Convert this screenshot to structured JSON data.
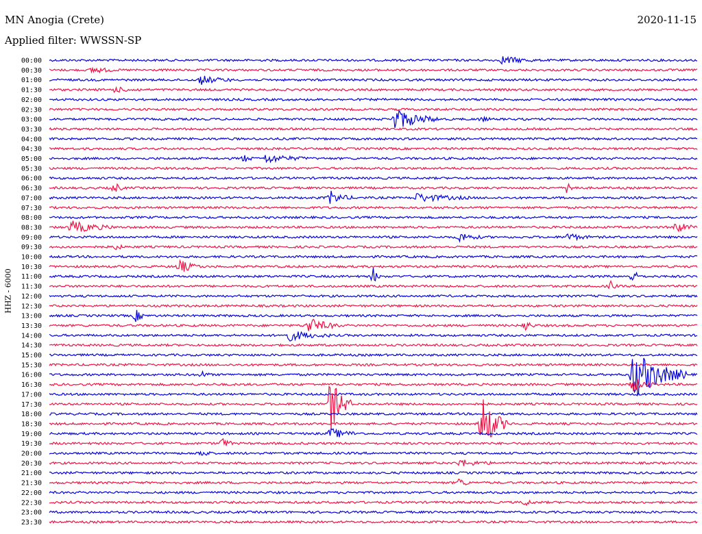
{
  "header": {
    "station": "MN Anogia (Crete)",
    "date": "2020-11-15",
    "filter": "Applied filter: WWSSN-SP",
    "channel": "HHZ - 6000"
  },
  "colors": {
    "even_row": "#0000dd",
    "odd_row": "#ee1144"
  },
  "chart_data": {
    "type": "line",
    "title": "",
    "ylabel": "HHZ - 6000",
    "row_labels": [
      "00:00",
      "00:30",
      "01:00",
      "01:30",
      "02:00",
      "02:30",
      "03:00",
      "03:30",
      "04:00",
      "04:30",
      "05:00",
      "05:30",
      "06:00",
      "06:30",
      "07:00",
      "07:30",
      "08:00",
      "08:30",
      "09:00",
      "09:30",
      "10:00",
      "10:30",
      "11:00",
      "11:30",
      "12:00",
      "12:30",
      "13:00",
      "13:30",
      "14:00",
      "14:30",
      "15:00",
      "15:30",
      "16:00",
      "16:30",
      "17:00",
      "17:30",
      "18:00",
      "18:30",
      "19:00",
      "19:30",
      "20:00",
      "20:30",
      "21:00",
      "21:30",
      "22:00",
      "22:30",
      "23:00",
      "23:30"
    ],
    "row_minutes": 30,
    "events": [
      {
        "row": 0,
        "minute": 21,
        "amp": 6,
        "len": 1.5
      },
      {
        "row": 1,
        "minute": 2,
        "amp": 5,
        "len": 1
      },
      {
        "row": 2,
        "minute": 7,
        "amp": 6,
        "len": 1.5
      },
      {
        "row": 3,
        "minute": 3,
        "amp": 3,
        "len": 1.5
      },
      {
        "row": 6,
        "minute": 16,
        "amp": 16,
        "len": 2
      },
      {
        "row": 6,
        "minute": 20,
        "amp": 3,
        "len": 0.5
      },
      {
        "row": 10,
        "minute": 10,
        "amp": 6,
        "len": 2
      },
      {
        "row": 10,
        "minute": 9,
        "amp": 5,
        "len": 0.5
      },
      {
        "row": 13,
        "minute": 3,
        "amp": 8,
        "len": 0.5
      },
      {
        "row": 13,
        "minute": 24,
        "amp": 9,
        "len": 0.5
      },
      {
        "row": 14,
        "minute": 13,
        "amp": 10,
        "len": 1
      },
      {
        "row": 14,
        "minute": 17,
        "amp": 6,
        "len": 2.5
      },
      {
        "row": 17,
        "minute": 1,
        "amp": 9,
        "len": 2
      },
      {
        "row": 17,
        "minute": 29,
        "amp": 8,
        "len": 1
      },
      {
        "row": 18,
        "minute": 19,
        "amp": 7,
        "len": 1
      },
      {
        "row": 18,
        "minute": 24,
        "amp": 6,
        "len": 1
      },
      {
        "row": 19,
        "minute": 3,
        "amp": 5,
        "len": 0.5
      },
      {
        "row": 21,
        "minute": 6,
        "amp": 10,
        "len": 1
      },
      {
        "row": 22,
        "minute": 15,
        "amp": 12,
        "len": 0.3
      },
      {
        "row": 22,
        "minute": 27,
        "amp": 9,
        "len": 0.5
      },
      {
        "row": 23,
        "minute": 26,
        "amp": 7,
        "len": 0.3
      },
      {
        "row": 26,
        "minute": 4,
        "amp": 9,
        "len": 0.5
      },
      {
        "row": 27,
        "minute": 12,
        "amp": 11,
        "len": 1.5
      },
      {
        "row": 27,
        "minute": 22,
        "amp": 8,
        "len": 0.5
      },
      {
        "row": 28,
        "minute": 11,
        "amp": 8,
        "len": 2
      },
      {
        "row": 32,
        "minute": 7,
        "amp": 5,
        "len": 0.5
      },
      {
        "row": 32,
        "minute": 27,
        "amp": 38,
        "len": 2.5
      },
      {
        "row": 33,
        "minute": 27,
        "amp": 10,
        "len": 1
      },
      {
        "row": 35,
        "minute": 13,
        "amp": 40,
        "len": 1
      },
      {
        "row": 37,
        "minute": 20,
        "amp": 45,
        "len": 1.2
      },
      {
        "row": 38,
        "minute": 13,
        "amp": 7,
        "len": 1.5
      },
      {
        "row": 39,
        "minute": 8,
        "amp": 8,
        "len": 0.5
      },
      {
        "row": 40,
        "minute": 7,
        "amp": 7,
        "len": 0.5
      },
      {
        "row": 41,
        "minute": 19,
        "amp": 5,
        "len": 1.5
      },
      {
        "row": 43,
        "minute": 19,
        "amp": 7,
        "len": 0.5
      },
      {
        "row": 45,
        "minute": 22,
        "amp": 5,
        "len": 0.5
      }
    ]
  }
}
